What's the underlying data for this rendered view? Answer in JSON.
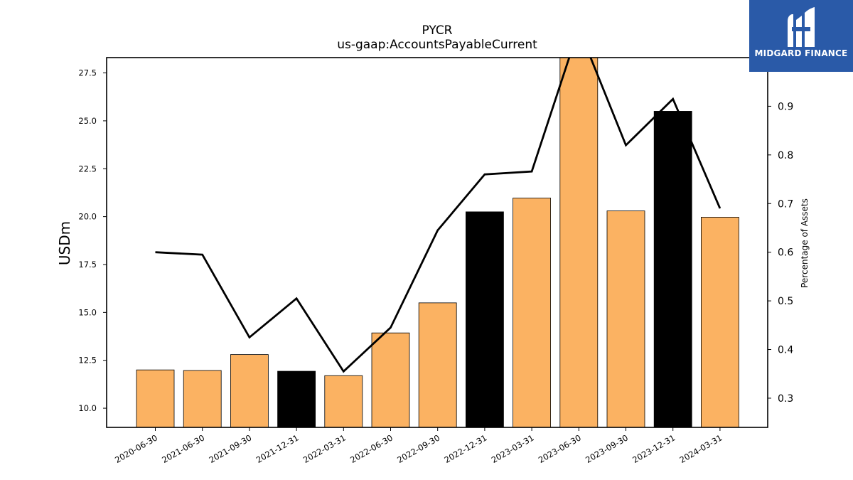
{
  "chart_data": {
    "type": "bar",
    "title": "PYCR",
    "subtitle": "us-gaap:AccountsPayableCurrent",
    "ylabel": "USDm",
    "y2label": "Percentage of Assets",
    "categories": [
      "2020-06-30",
      "2021-06-30",
      "2021-09-30",
      "2021-12-31",
      "2022-03-31",
      "2022-06-30",
      "2022-09-30",
      "2022-12-31",
      "2023-03-31",
      "2023-06-30",
      "2023-09-30",
      "2023-12-31",
      "2024-03-31"
    ],
    "series": [
      {
        "type": "bar",
        "values": [
          12.0,
          11.97,
          12.8,
          11.93,
          11.7,
          13.93,
          15.5,
          20.25,
          20.97,
          28.9,
          20.3,
          25.5,
          19.97
        ]
      },
      {
        "type": "line",
        "axis": "right",
        "values": [
          0.6,
          0.595,
          0.425,
          0.505,
          0.355,
          0.445,
          0.645,
          0.76,
          0.766,
          1.06,
          0.82,
          0.915,
          0.69
        ]
      }
    ],
    "bar_colors": [
      "#fbb262",
      "#fbb262",
      "#fbb262",
      "#000000",
      "#fbb262",
      "#fbb262",
      "#fbb262",
      "#000000",
      "#fbb262",
      "#fbb262",
      "#fbb262",
      "#000000",
      "#fbb262"
    ],
    "line_color": "#000000",
    "ylim": [
      9.0,
      28.3
    ],
    "y2lim": [
      0.24,
      1.0
    ],
    "yticks": [
      "10.0",
      "12.5",
      "15.0",
      "17.5",
      "20.0",
      "22.5",
      "25.0",
      "27.5"
    ],
    "y2ticks": [
      "0.3",
      "0.4",
      "0.5",
      "0.6",
      "0.7",
      "0.8",
      "0.9",
      "1.0"
    ],
    "grid": false
  },
  "logo": {
    "text": "MIDGARD FINANCE",
    "color": "#2a5aa8"
  }
}
